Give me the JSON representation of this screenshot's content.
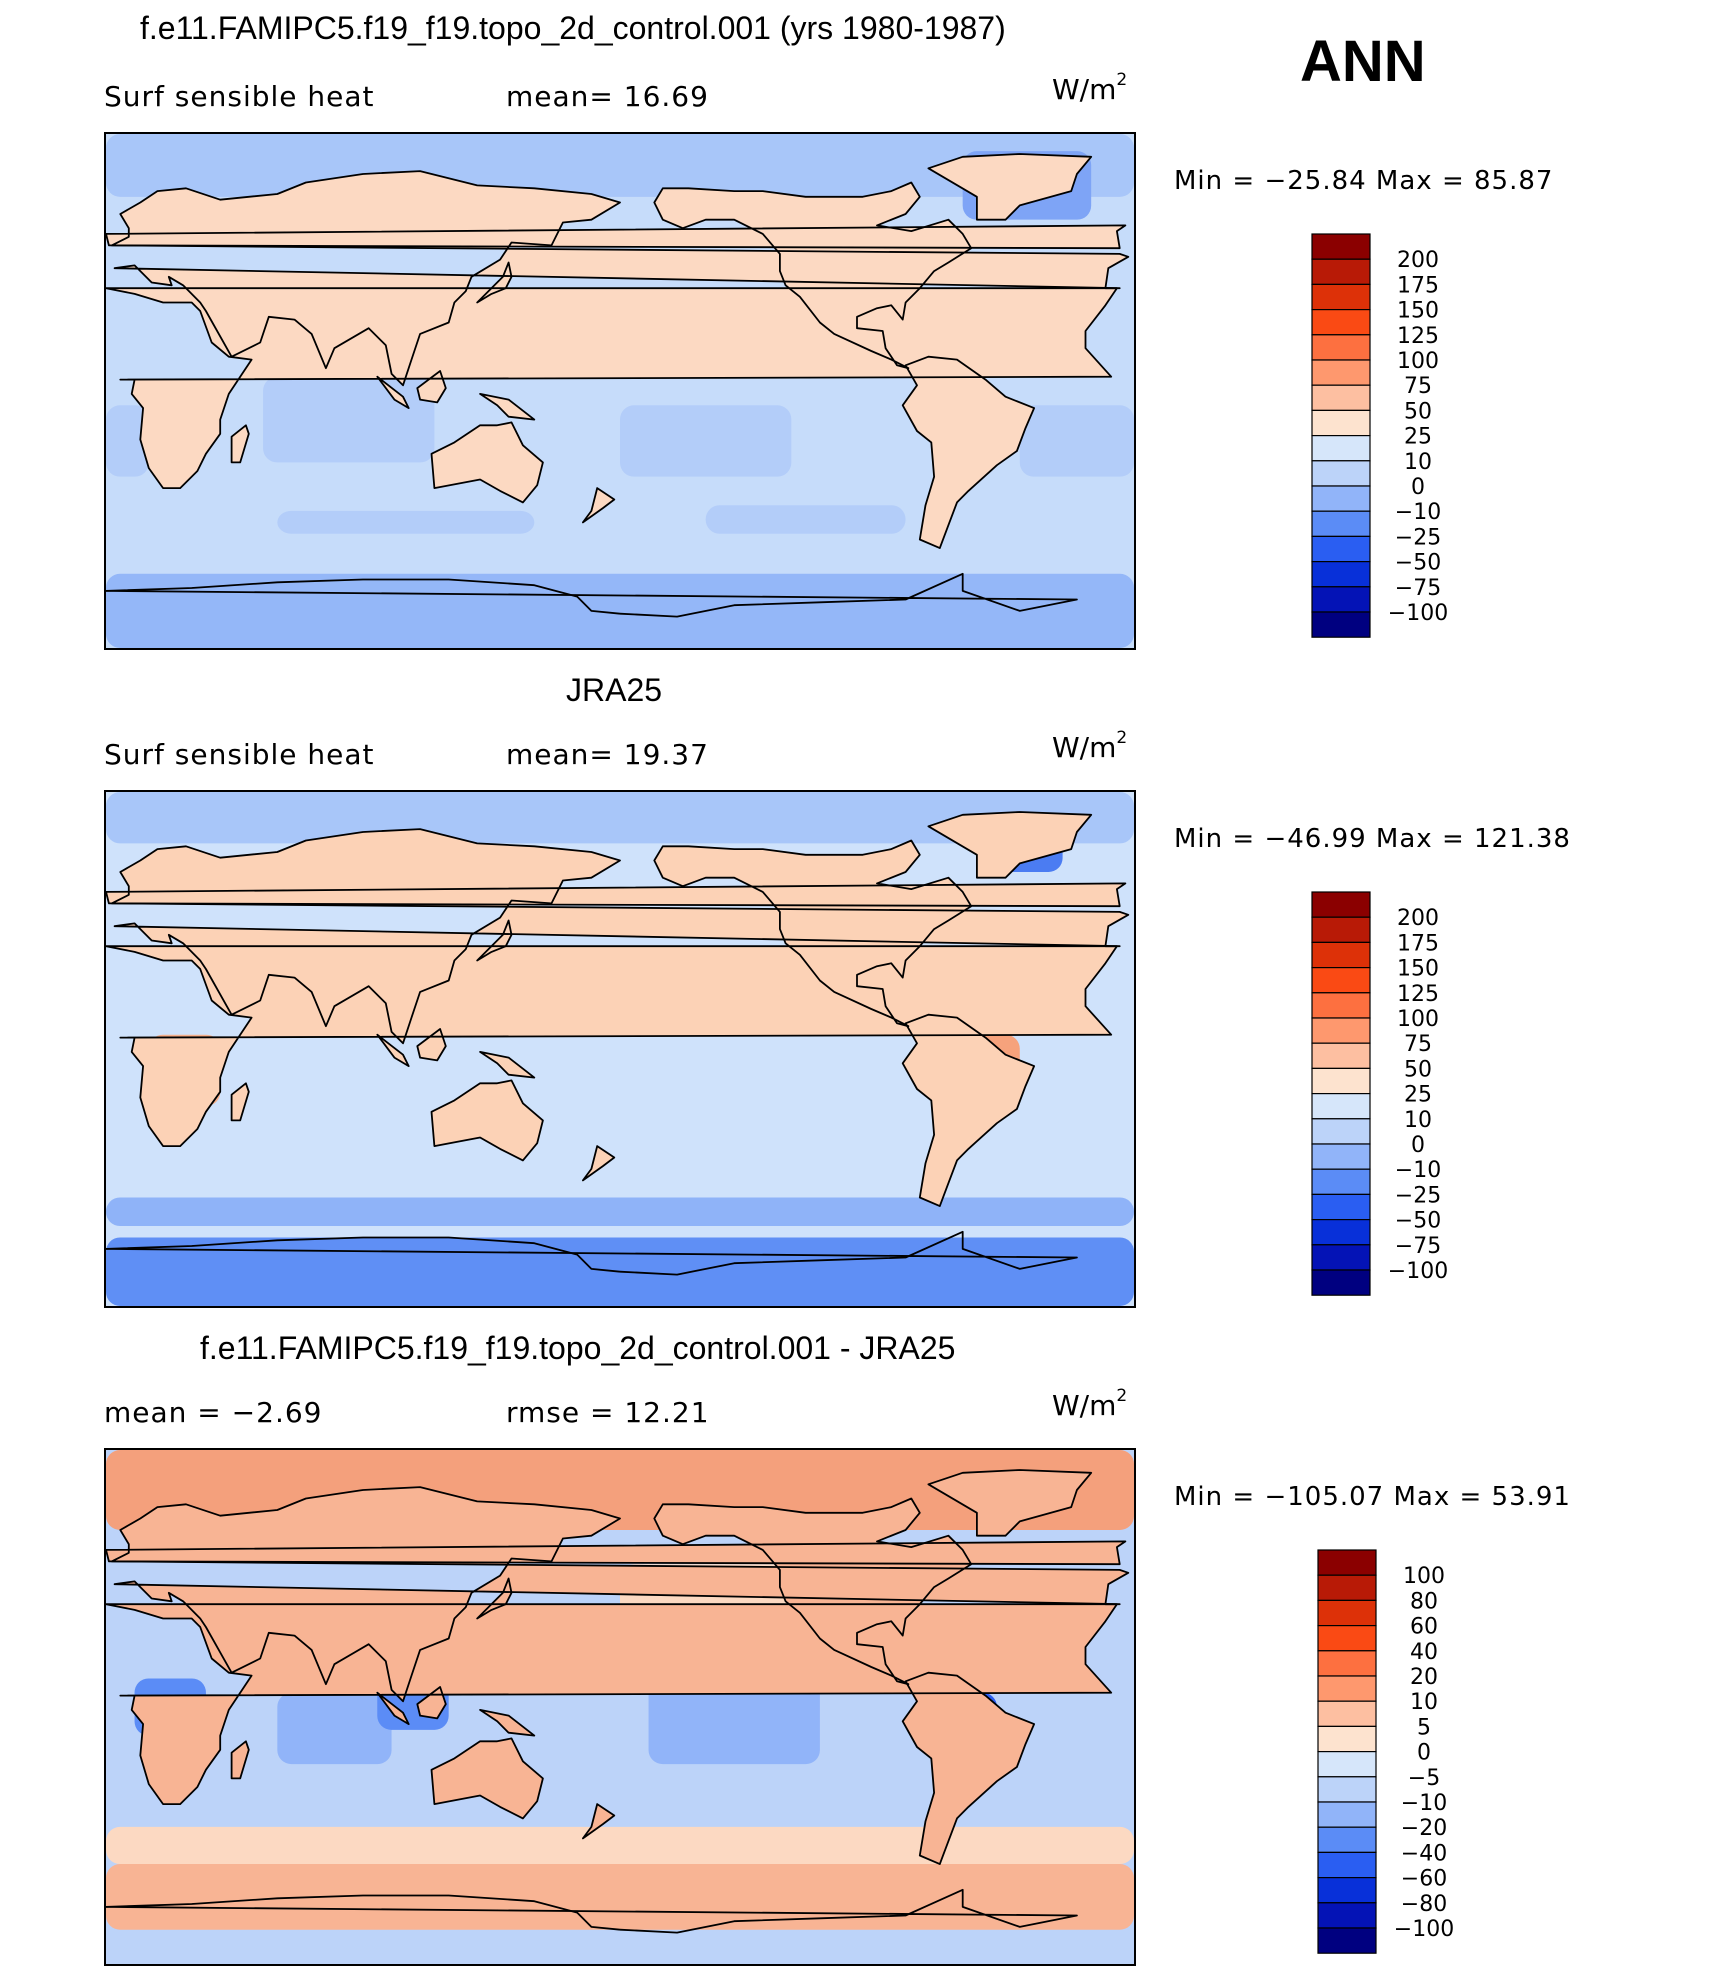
{
  "season": "ANN",
  "panels": [
    {
      "title": "f.e11.FAMIPC5.f19_f19.topo_2d_control.001 (yrs 1980-1987)",
      "left": "Surf  sensible  heat",
      "middle": "mean=   16.69",
      "units": "W/m",
      "units_exp": "2",
      "minmax": "Min  =  −25.84  Max  =    85.87"
    },
    {
      "title": "JRA25",
      "left": "Surf  sensible  heat",
      "middle": "mean=   19.37",
      "units": "W/m",
      "units_exp": "2",
      "minmax": "Min  =  −46.99  Max  =  121.38"
    },
    {
      "title": "f.e11.FAMIPC5.f19_f19.topo_2d_control.001 - JRA25",
      "left": "mean  =    −2.69",
      "middle": "rmse  =    12.21",
      "units": "W/m",
      "units_exp": "2",
      "minmax": "Min  =  −105.07  Max  =    53.91"
    }
  ],
  "chart_data": [
    {
      "type": "heatmap",
      "title": "f.e11.FAMIPC5.f19_f19.topo_2d_control.001 (yrs 1980-1987)",
      "variable": "Surf sensible heat",
      "units": "W/m2",
      "mean": 16.69,
      "min": -25.84,
      "max": 85.87,
      "levels": [
        "200",
        "175",
        "150",
        "125",
        "100",
        "75",
        "50",
        "25",
        "10",
        "0",
        "−10",
        "−25",
        "−50",
        "−75",
        "−100"
      ],
      "colors": [
        "#8b0000",
        "#b81a06",
        "#dd3108",
        "#fa4a14",
        "#fd7040",
        "#fe986e",
        "#fdbfa1",
        "#fde3cf",
        "#d6e6fa",
        "#bcd3f9",
        "#91b4f9",
        "#5b8cf6",
        "#2a5ef2",
        "#0830d9",
        "#0413b6",
        "#000080"
      ],
      "projection": "cylindrical equidistant, centered on 180°"
    },
    {
      "type": "heatmap",
      "title": "JRA25",
      "variable": "Surf sensible heat",
      "units": "W/m2",
      "mean": 19.37,
      "min": -46.99,
      "max": 121.38,
      "levels": [
        "200",
        "175",
        "150",
        "125",
        "100",
        "75",
        "50",
        "25",
        "10",
        "0",
        "−10",
        "−25",
        "−50",
        "−75",
        "−100"
      ],
      "colors": [
        "#8b0000",
        "#b81a06",
        "#dd3108",
        "#fa4a14",
        "#fd7040",
        "#fe986e",
        "#fdbfa1",
        "#fde3cf",
        "#d6e6fa",
        "#bcd3f9",
        "#91b4f9",
        "#5b8cf6",
        "#2a5ef2",
        "#0830d9",
        "#0413b6",
        "#000080"
      ],
      "projection": "cylindrical equidistant, centered on 180°"
    },
    {
      "type": "heatmap",
      "title": "f.e11.FAMIPC5.f19_f19.topo_2d_control.001 - JRA25",
      "units": "W/m2",
      "mean": -2.69,
      "rmse": 12.21,
      "min": -105.07,
      "max": 53.91,
      "levels": [
        "100",
        "80",
        "60",
        "40",
        "20",
        "10",
        "5",
        "0",
        "−5",
        "−10",
        "−20",
        "−40",
        "−60",
        "−80",
        "−100"
      ],
      "colors": [
        "#8b0000",
        "#b81a06",
        "#dd3108",
        "#fa4a14",
        "#fd7040",
        "#fe986e",
        "#fdbfa1",
        "#fde3cf",
        "#d6e6fa",
        "#bcd3f9",
        "#91b4f9",
        "#5b8cf6",
        "#2a5ef2",
        "#0830d9",
        "#0413b6",
        "#000080"
      ],
      "projection": "cylindrical equidistant, centered on 180°"
    }
  ]
}
